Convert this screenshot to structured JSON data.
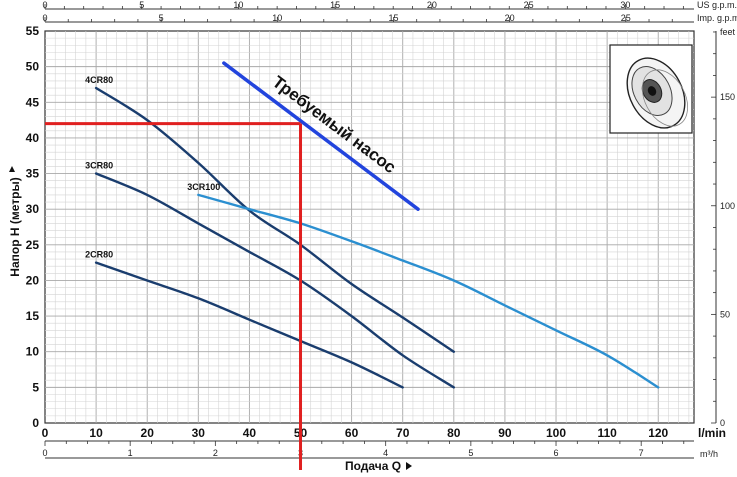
{
  "chart_data": {
    "type": "line",
    "ylabel": "Напор H (метры)",
    "xlabel": "Подача Q",
    "x_units": {
      "lmin": "l/min",
      "m3h": "m³/h",
      "usgpm": "US g.p.m.",
      "impgpm": "Imp. g.p.m.",
      "feet": "feet"
    },
    "xlim": [
      0,
      127
    ],
    "ylim": [
      0,
      55
    ],
    "grid": true,
    "x_ticks_lmin": [
      0,
      10,
      20,
      30,
      40,
      50,
      60,
      70,
      80,
      90,
      100,
      110,
      120
    ],
    "y_ticks_m": [
      0,
      5,
      10,
      15,
      20,
      25,
      30,
      35,
      40,
      45,
      50,
      55
    ],
    "x_ticks_m3h": [
      0,
      1,
      2,
      3,
      4,
      5,
      6,
      7
    ],
    "x_ticks_usgpm": [
      0,
      5,
      10,
      15,
      20,
      25,
      30
    ],
    "x_ticks_impgpm": [
      0,
      5,
      10,
      15,
      20,
      25
    ],
    "y_ticks_feet": [
      0,
      50,
      100,
      150
    ],
    "series": [
      {
        "name": "4CR80",
        "color": "#1a3d6e",
        "x": [
          10,
          20,
          30,
          40,
          50,
          60,
          70,
          80
        ],
        "y": [
          47,
          42.5,
          36.5,
          29.8,
          25,
          19.5,
          14.8,
          10
        ]
      },
      {
        "name": "3CR80",
        "color": "#1a3d6e",
        "x": [
          10,
          20,
          30,
          40,
          50,
          60,
          70,
          80
        ],
        "y": [
          35,
          32,
          28,
          24,
          20,
          15,
          9.5,
          5
        ]
      },
      {
        "name": "3CR100",
        "color": "#2b8fd0",
        "x": [
          30,
          40,
          50,
          60,
          70,
          80,
          90,
          100,
          110,
          120
        ],
        "y": [
          32,
          30,
          28,
          25.5,
          22.8,
          20,
          16.5,
          13,
          9.5,
          5
        ]
      },
      {
        "name": "2CR80",
        "color": "#1a3d6e",
        "x": [
          10,
          20,
          30,
          40,
          50,
          60,
          70
        ],
        "y": [
          22.5,
          20,
          17.5,
          14.5,
          11.5,
          8.5,
          5
        ]
      }
    ],
    "annotations": [
      {
        "text": "Требуемый насос",
        "color": "#2244dd",
        "x": [
          35,
          73
        ],
        "y": [
          50.5,
          30
        ]
      }
    ],
    "operating_point": {
      "color": "#e02020",
      "x": 50,
      "y": 42
    }
  }
}
